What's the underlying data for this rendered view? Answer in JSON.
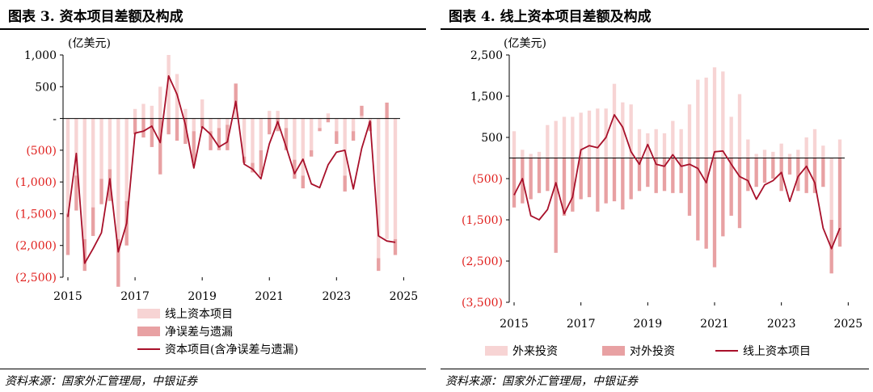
{
  "chart_data": [
    {
      "type": "bar+line",
      "title": "图表 3. 资本项目差额及构成",
      "unit_label": "(亿美元)",
      "source": "资料来源：国家外汇管理局，中银证券",
      "ylim": [
        -2500,
        1000
      ],
      "yticks": [
        1000,
        500,
        0,
        -500,
        -1000,
        -1500,
        -2000,
        -2500
      ],
      "ytick_labels": [
        "1,000",
        "500",
        "-",
        "(500)",
        "(1,000)",
        "(1,500)",
        "(2,000)",
        "(2,500)"
      ],
      "x_start": 2015.0,
      "x_step": 0.25,
      "xtick_labels": [
        "2015",
        "2017",
        "2019",
        "2021",
        "2023",
        "2025"
      ],
      "xticks_at": [
        2015,
        2017,
        2019,
        2021,
        2023,
        2025
      ],
      "colors": {
        "bar1": "#f7d4d4",
        "bar2": "#e8a1a3",
        "line": "#a8102a",
        "neg_label": "#e0201e"
      },
      "series": [
        {
          "name": "线上资本项目",
          "kind": "bar",
          "values": [
            -1500,
            -900,
            -1900,
            -1400,
            -950,
            -800,
            -1900,
            -1300,
            150,
            230,
            200,
            500,
            1000,
            700,
            150,
            -200,
            300,
            -200,
            -150,
            -100,
            150,
            -600,
            -700,
            -500,
            120,
            120,
            -150,
            -650,
            -900,
            -500,
            -150,
            80,
            -200,
            -900,
            -200,
            40,
            -50,
            -2200,
            -1900,
            -1900
          ]
        },
        {
          "name": "净误差与遗漏",
          "kind": "bar",
          "values": [
            -650,
            -550,
            -500,
            -450,
            -400,
            -500,
            -750,
            -700,
            -250,
            -300,
            -450,
            -880,
            -250,
            -350,
            -400,
            -500,
            -150,
            -300,
            -350,
            -400,
            400,
            -100,
            -150,
            -400,
            -250,
            -200,
            -350,
            -300,
            -200,
            -100,
            -50,
            -60,
            -200,
            -250,
            -150,
            160,
            -150,
            -200,
            250,
            -250
          ]
        },
        {
          "name": "资本项目(含净误差与遗漏)",
          "kind": "line",
          "values": [
            -1550,
            -550,
            -2280,
            -2050,
            -1800,
            -950,
            -2100,
            -1650,
            -230,
            -200,
            -120,
            -380,
            670,
            380,
            -100,
            -780,
            -130,
            -250,
            -450,
            -370,
            270,
            -720,
            -800,
            -950,
            -400,
            -50,
            -450,
            -870,
            -640,
            -1030,
            -1090,
            -730,
            -530,
            -500,
            -1110,
            -470,
            -40,
            -1850,
            -1930,
            -1950
          ]
        }
      ],
      "legend": [
        "线上资本项目",
        "净误差与遗漏",
        "资本项目(含净误差与遗漏)"
      ]
    },
    {
      "type": "bar+line",
      "title": "图表 4. 线上资本项目差额及构成",
      "unit_label": "(亿美元)",
      "source": "资料来源：国家外汇管理局，中银证券",
      "ylim": [
        -3500,
        2500
      ],
      "yticks": [
        2500,
        1500,
        500,
        -500,
        -1500,
        -2500,
        -3500
      ],
      "ytick_labels": [
        "2,500",
        "1,500",
        "500",
        "(500)",
        "(1,500)",
        "(2,500)",
        "(3,500)"
      ],
      "x_start": 2015.0,
      "x_step": 0.25,
      "xtick_labels": [
        "2015",
        "2017",
        "2019",
        "2021",
        "2023",
        "2025"
      ],
      "xticks_at": [
        2015,
        2017,
        2019,
        2021,
        2023,
        2025
      ],
      "colors": {
        "bar1": "#f7d4d4",
        "bar2": "#e8a1a3",
        "line": "#a8102a",
        "neg_label": "#e0201e"
      },
      "series": [
        {
          "name": "外来投资",
          "kind": "bar",
          "values": [
            650,
            200,
            100,
            150,
            800,
            900,
            1000,
            1000,
            1100,
            1150,
            1200,
            1200,
            1800,
            1350,
            1300,
            700,
            600,
            700,
            600,
            900,
            700,
            1300,
            1900,
            1950,
            2200,
            2100,
            1000,
            1550,
            450,
            100,
            200,
            150,
            350,
            100,
            200,
            500,
            700,
            300,
            -1500,
            450
          ]
        },
        {
          "name": "对外投资",
          "kind": "bar",
          "values": [
            -1200,
            -1100,
            -1000,
            -850,
            -800,
            -2300,
            -1400,
            -1300,
            -1000,
            -950,
            -1300,
            -1100,
            -1050,
            -1250,
            -1000,
            -800,
            -700,
            -850,
            -800,
            -850,
            -850,
            -1400,
            -2000,
            -2200,
            -2650,
            -1900,
            -1400,
            -1700,
            -800,
            -700,
            -600,
            -500,
            -800,
            -400,
            -800,
            -850,
            -850,
            -700,
            -1300,
            -2150
          ]
        },
        {
          "name": "线上资本项目",
          "kind": "line",
          "values": [
            -900,
            -500,
            -1400,
            -1500,
            -1250,
            -600,
            -1350,
            -950,
            200,
            300,
            250,
            500,
            1050,
            750,
            150,
            -150,
            330,
            -150,
            -200,
            80,
            -200,
            -150,
            -250,
            -600,
            150,
            170,
            -150,
            -450,
            -550,
            -1000,
            -650,
            -550,
            -350,
            -1050,
            -450,
            -200,
            -600,
            -1700,
            -2200,
            -1700
          ]
        }
      ],
      "legend": [
        "外来投资",
        "对外投资",
        "线上资本项目"
      ]
    }
  ]
}
